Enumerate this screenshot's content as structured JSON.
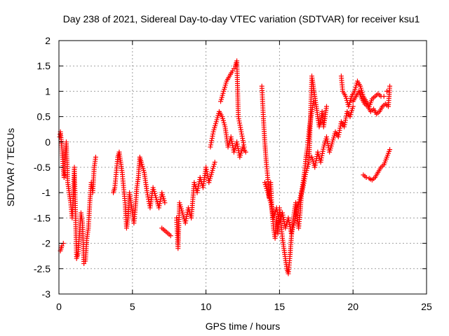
{
  "chart_data": {
    "type": "scatter",
    "title": "Day 238 of 2021, Sidereal Day-to-day VTEC variation (SDTVAR) for receiver ksu1",
    "xlabel": "GPS time / hours",
    "ylabel": "SDTVAR / TECUs",
    "xlim": [
      0,
      25
    ],
    "ylim": [
      -3,
      2
    ],
    "xticks": [
      0,
      5,
      10,
      15,
      20,
      25
    ],
    "yticks": [
      -3,
      -2.5,
      -2,
      -1.5,
      -1,
      -0.5,
      0,
      0.5,
      1,
      1.5,
      2
    ],
    "xtick_labels": [
      "0",
      "5",
      "10",
      "15",
      "20",
      "25"
    ],
    "ytick_labels": [
      "-3",
      "-2.5",
      "-2",
      "-1.5",
      "-1",
      "-0.5",
      "0",
      "0.5",
      "1",
      "1.5",
      "2"
    ],
    "grid": true,
    "marker": "+",
    "color": "#ff0000",
    "series": [
      {
        "name": "SDTVAR",
        "points": [
          [
            0.1,
            -2.15
          ],
          [
            0.2,
            -2.05
          ],
          [
            0.3,
            -2.0
          ],
          [
            0.05,
            0.1
          ],
          [
            0.1,
            0.2
          ],
          [
            0.15,
            0.05
          ],
          [
            0.2,
            -0.1
          ],
          [
            0.25,
            -0.3
          ],
          [
            0.3,
            -0.55
          ],
          [
            0.35,
            -0.7
          ],
          [
            0.4,
            -0.6
          ],
          [
            0.45,
            -0.2
          ],
          [
            0.5,
            0.0
          ],
          [
            0.55,
            -0.4
          ],
          [
            0.6,
            -0.8
          ],
          [
            0.7,
            -1.0
          ],
          [
            0.8,
            -1.2
          ],
          [
            0.9,
            -1.5
          ],
          [
            1.0,
            -0.9
          ],
          [
            1.05,
            -0.5
          ],
          [
            1.2,
            -2.3
          ],
          [
            1.3,
            -2.2
          ],
          [
            1.4,
            -1.8
          ],
          [
            1.5,
            -1.4
          ],
          [
            1.6,
            -1.6
          ],
          [
            1.7,
            -2.4
          ],
          [
            1.8,
            -2.35
          ],
          [
            1.9,
            -1.9
          ],
          [
            2.0,
            -1.7
          ],
          [
            2.1,
            -1.2
          ],
          [
            2.2,
            -0.8
          ],
          [
            2.3,
            -1.0
          ],
          [
            2.4,
            -0.5
          ],
          [
            2.5,
            -0.3
          ],
          [
            3.7,
            -1.0
          ],
          [
            3.8,
            -0.9
          ],
          [
            3.9,
            -0.6
          ],
          [
            4.0,
            -0.3
          ],
          [
            4.1,
            -0.2
          ],
          [
            4.2,
            -0.4
          ],
          [
            4.3,
            -0.6
          ],
          [
            4.4,
            -0.9
          ],
          [
            4.5,
            -1.2
          ],
          [
            4.6,
            -1.7
          ],
          [
            4.7,
            -1.5
          ],
          [
            4.8,
            -1.0
          ],
          [
            4.9,
            -1.2
          ],
          [
            5.0,
            -1.4
          ],
          [
            5.1,
            -1.6
          ],
          [
            5.2,
            -1.3
          ],
          [
            5.3,
            -0.9
          ],
          [
            5.4,
            -0.7
          ],
          [
            5.5,
            -0.3
          ],
          [
            5.6,
            -0.4
          ],
          [
            5.8,
            -0.6
          ],
          [
            6.0,
            -1.0
          ],
          [
            6.2,
            -1.3
          ],
          [
            6.4,
            -0.9
          ],
          [
            6.6,
            -1.1
          ],
          [
            6.8,
            -1.3
          ],
          [
            7.0,
            -1.0
          ],
          [
            7.2,
            -1.2
          ],
          [
            7.0,
            -1.7
          ],
          [
            7.2,
            -1.75
          ],
          [
            7.4,
            -1.8
          ],
          [
            7.6,
            -1.85
          ],
          [
            8.0,
            -1.5
          ],
          [
            8.1,
            -2.1
          ],
          [
            8.2,
            -1.2
          ],
          [
            8.4,
            -1.4
          ],
          [
            8.6,
            -1.6
          ],
          [
            8.8,
            -1.3
          ],
          [
            9.0,
            -1.5
          ],
          [
            9.2,
            -0.8
          ],
          [
            9.4,
            -1.0
          ],
          [
            9.6,
            -0.7
          ],
          [
            9.8,
            -0.9
          ],
          [
            10.0,
            -0.5
          ],
          [
            10.2,
            -0.8
          ],
          [
            10.4,
            -0.6
          ],
          [
            10.6,
            -0.4
          ],
          [
            10.3,
            -0.1
          ],
          [
            10.5,
            0.2
          ],
          [
            10.7,
            0.4
          ],
          [
            10.9,
            0.6
          ],
          [
            11.1,
            0.5
          ],
          [
            11.3,
            0.3
          ],
          [
            11.5,
            -0.1
          ],
          [
            11.7,
            0.1
          ],
          [
            11.9,
            -0.2
          ],
          [
            12.1,
            0.0
          ],
          [
            12.3,
            -0.3
          ],
          [
            12.5,
            -0.1
          ],
          [
            12.7,
            -0.2
          ],
          [
            11.0,
            0.8
          ],
          [
            11.2,
            1.0
          ],
          [
            11.4,
            1.2
          ],
          [
            11.6,
            1.3
          ],
          [
            11.8,
            1.4
          ],
          [
            11.9,
            1.45
          ],
          [
            12.0,
            1.5
          ],
          [
            12.1,
            1.6
          ],
          [
            12.2,
            0.5
          ],
          [
            12.4,
            0.2
          ],
          [
            12.6,
            -0.1
          ],
          [
            13.8,
            1.1
          ],
          [
            13.9,
            0.5
          ],
          [
            14.0,
            0.0
          ],
          [
            14.1,
            -0.4
          ],
          [
            14.2,
            -0.7
          ],
          [
            14.3,
            -1.1
          ],
          [
            14.4,
            -0.8
          ],
          [
            14.5,
            -1.4
          ],
          [
            14.6,
            -1.7
          ],
          [
            14.7,
            -1.9
          ],
          [
            14.8,
            -1.5
          ],
          [
            14.9,
            -1.8
          ],
          [
            15.0,
            -1.3
          ],
          [
            15.1,
            -1.6
          ],
          [
            15.2,
            -1.9
          ],
          [
            15.3,
            -2.1
          ],
          [
            15.4,
            -2.3
          ],
          [
            15.5,
            -2.5
          ],
          [
            15.6,
            -2.6
          ],
          [
            15.7,
            -2.3
          ],
          [
            15.8,
            -1.9
          ],
          [
            15.9,
            -1.6
          ],
          [
            16.0,
            -1.4
          ],
          [
            16.1,
            -1.2
          ],
          [
            16.2,
            -1.5
          ],
          [
            16.3,
            -1.7
          ],
          [
            16.4,
            -1.4
          ],
          [
            16.5,
            -1.0
          ],
          [
            16.6,
            -0.8
          ],
          [
            16.7,
            -0.6
          ],
          [
            16.8,
            -0.3
          ],
          [
            16.9,
            -0.1
          ],
          [
            17.0,
            0.2
          ],
          [
            17.1,
            0.4
          ],
          [
            17.2,
            0.6
          ],
          [
            17.3,
            0.8
          ],
          [
            14.0,
            -0.8
          ],
          [
            14.2,
            -1.0
          ],
          [
            14.4,
            -1.2
          ],
          [
            14.6,
            -1.5
          ],
          [
            14.8,
            -1.3
          ],
          [
            15.0,
            -1.6
          ],
          [
            15.2,
            -1.4
          ],
          [
            15.4,
            -1.7
          ],
          [
            15.6,
            -1.5
          ],
          [
            15.8,
            -1.8
          ],
          [
            16.0,
            -1.6
          ],
          [
            16.2,
            -1.3
          ],
          [
            16.4,
            -1.1
          ],
          [
            16.6,
            -0.9
          ],
          [
            16.8,
            -0.6
          ],
          [
            17.0,
            -0.4
          ],
          [
            17.2,
            1.3
          ],
          [
            17.3,
            1.1
          ],
          [
            17.4,
            0.9
          ],
          [
            17.5,
            0.7
          ],
          [
            17.6,
            0.5
          ],
          [
            17.7,
            0.3
          ],
          [
            17.8,
            0.4
          ],
          [
            17.9,
            0.6
          ],
          [
            18.0,
            0.3
          ],
          [
            18.1,
            0.5
          ],
          [
            18.2,
            0.7
          ],
          [
            17.2,
            -0.3
          ],
          [
            17.4,
            -0.5
          ],
          [
            17.6,
            -0.2
          ],
          [
            17.8,
            -0.4
          ],
          [
            18.0,
            -0.1
          ],
          [
            18.2,
            0.1
          ],
          [
            18.4,
            -0.2
          ],
          [
            18.6,
            0.0
          ],
          [
            18.8,
            0.2
          ],
          [
            19.0,
            0.1
          ],
          [
            19.2,
            0.4
          ],
          [
            19.4,
            0.3
          ],
          [
            19.6,
            0.6
          ],
          [
            19.8,
            0.5
          ],
          [
            20.0,
            0.7
          ],
          [
            19.2,
            1.3
          ],
          [
            19.3,
            1.0
          ],
          [
            19.5,
            0.9
          ],
          [
            19.7,
            0.7
          ],
          [
            19.9,
            0.9
          ],
          [
            20.1,
            1.0
          ],
          [
            20.3,
            1.2
          ],
          [
            20.5,
            1.1
          ],
          [
            20.7,
            0.9
          ],
          [
            20.9,
            0.8
          ],
          [
            21.1,
            0.7
          ],
          [
            21.3,
            0.85
          ],
          [
            21.5,
            0.9
          ],
          [
            21.7,
            0.95
          ],
          [
            21.9,
            0.9
          ],
          [
            20.0,
            0.8
          ],
          [
            20.2,
            0.9
          ],
          [
            20.4,
            1.0
          ],
          [
            20.6,
            0.85
          ],
          [
            20.8,
            0.75
          ],
          [
            21.0,
            0.7
          ],
          [
            21.2,
            0.6
          ],
          [
            21.4,
            0.65
          ],
          [
            21.6,
            0.55
          ],
          [
            21.8,
            0.6
          ],
          [
            22.0,
            0.7
          ],
          [
            22.2,
            0.75
          ],
          [
            22.4,
            0.7
          ],
          [
            22.5,
            1.1
          ],
          [
            22.3,
            1.0
          ],
          [
            22.1,
            0.9
          ],
          [
            20.7,
            -0.65
          ],
          [
            20.9,
            -0.7
          ],
          [
            21.1,
            -0.72
          ],
          [
            21.3,
            -0.75
          ],
          [
            21.5,
            -0.7
          ],
          [
            21.7,
            -0.6
          ],
          [
            21.9,
            -0.5
          ],
          [
            22.1,
            -0.45
          ],
          [
            22.3,
            -0.3
          ],
          [
            22.5,
            -0.15
          ]
        ]
      }
    ]
  }
}
